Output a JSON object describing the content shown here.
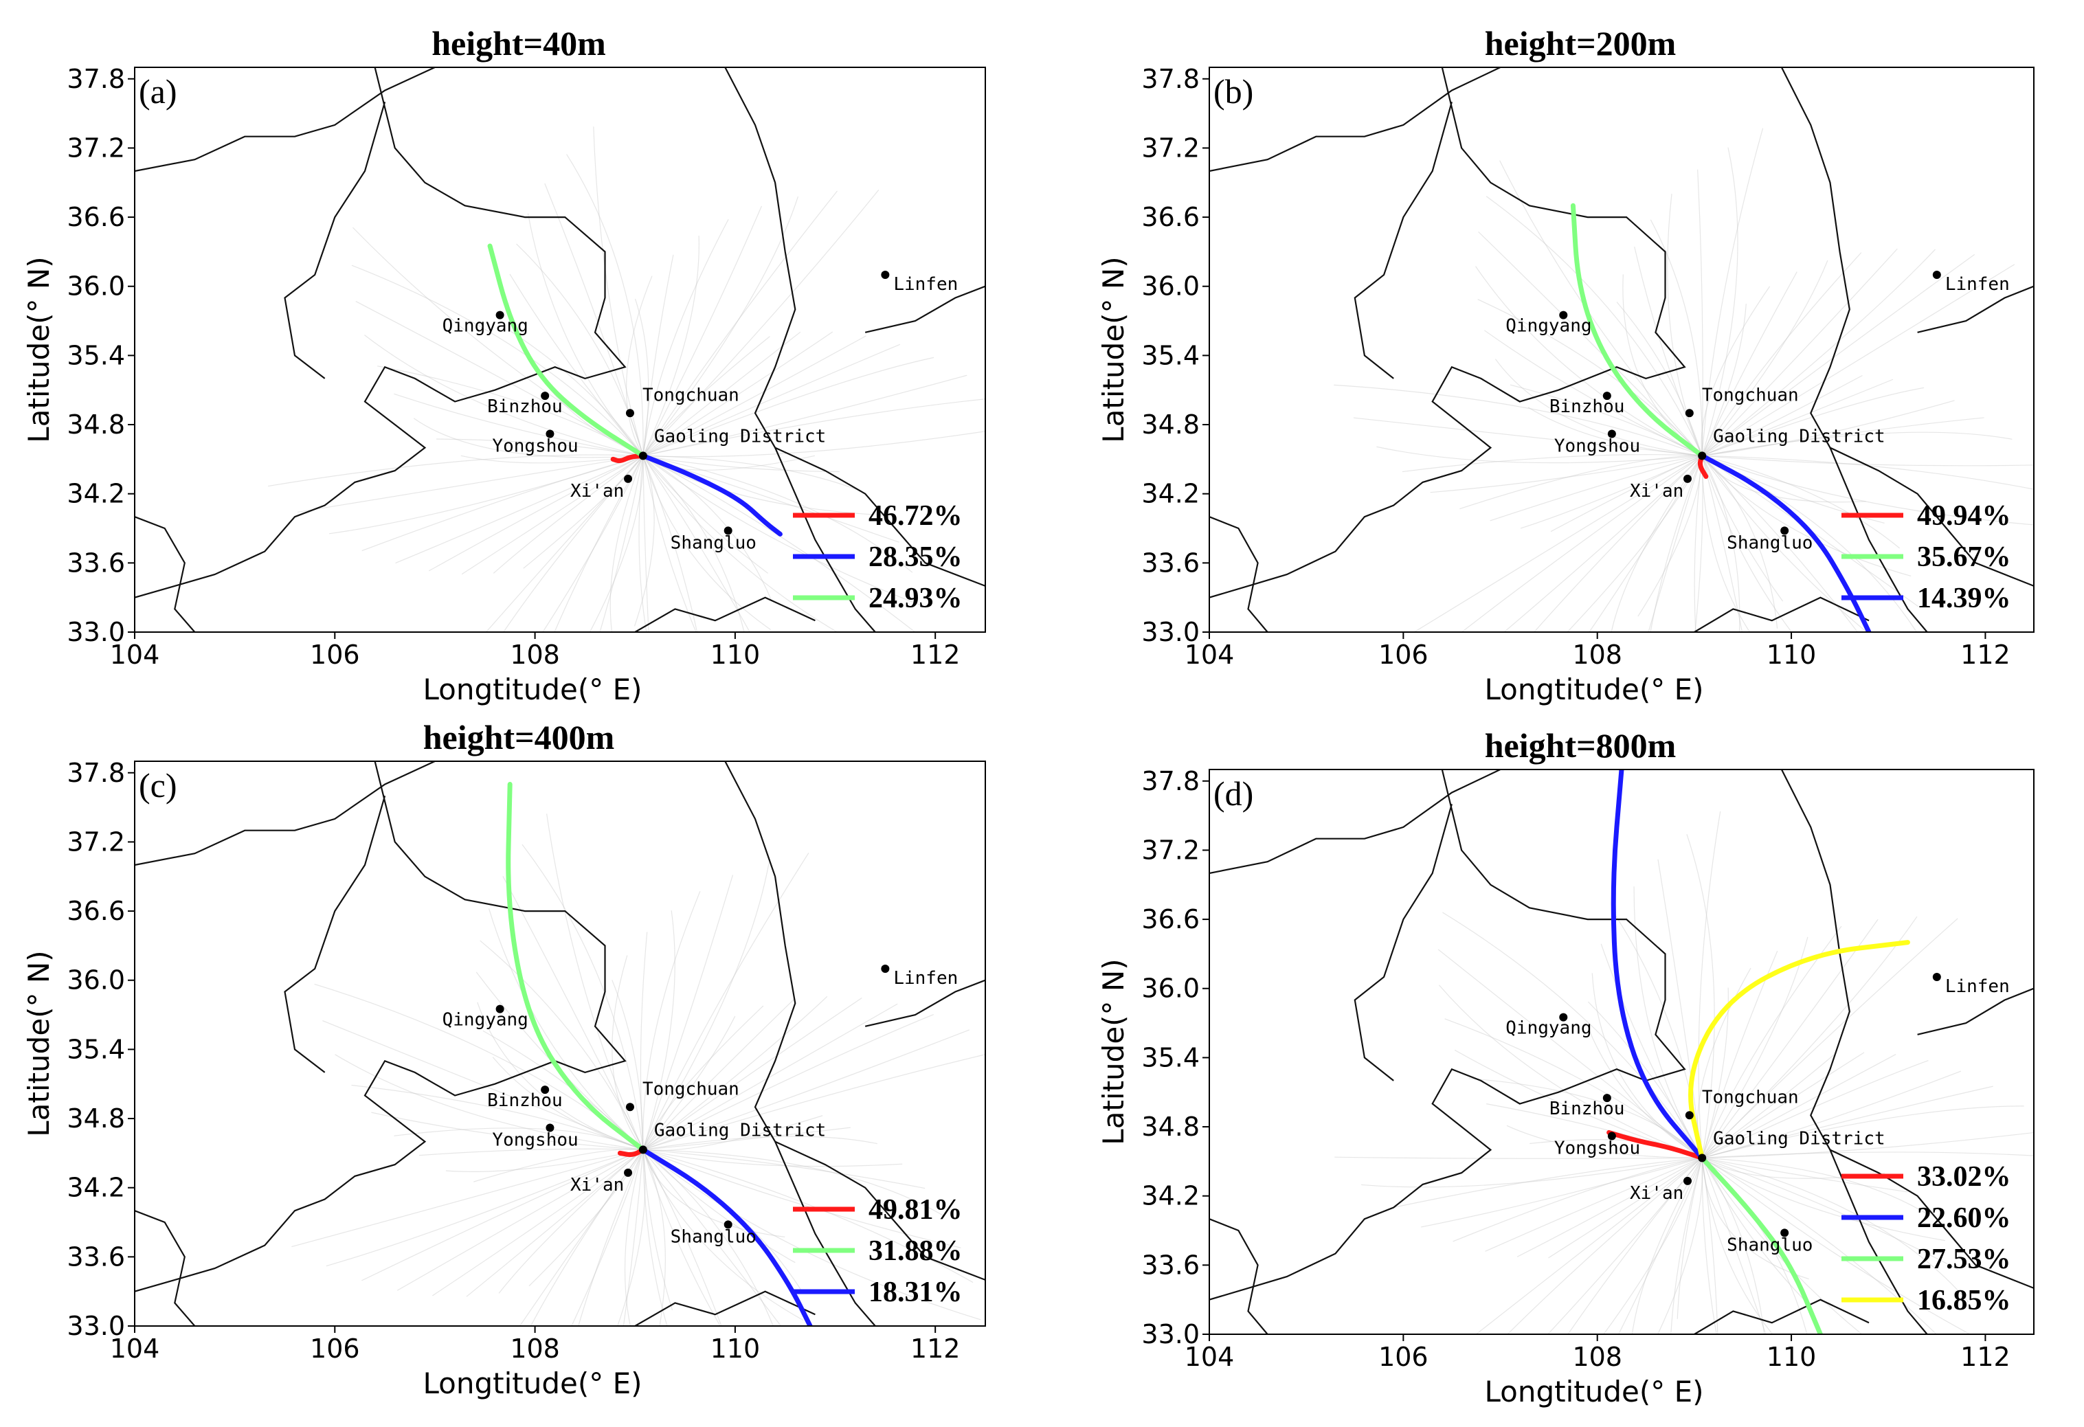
{
  "figure": {
    "x_axis_label": "Longtitude(° E)",
    "y_axis_label": "Latitude(° N)"
  },
  "colors": {
    "red": "#ff1a1a",
    "blue": "#1a1aff",
    "green": "#80ff80",
    "yellow": "#ffff1a",
    "city_dot": "#000000"
  },
  "chart_data": [
    {
      "type": "line",
      "panel_label": "(a)",
      "title": "height=40m",
      "xlabel": "Longtitude(° E)",
      "ylabel": "Latitude(° N)",
      "xlim": [
        104,
        112.5
      ],
      "ylim": [
        33.0,
        37.9
      ],
      "x_ticks": [
        "104",
        "106",
        "108",
        "110",
        "112"
      ],
      "y_ticks": [
        "33.0",
        "33.6",
        "34.2",
        "34.8",
        "35.4",
        "36.0",
        "36.6",
        "37.2",
        "37.8"
      ],
      "cities": [
        {
          "name": "Linfen",
          "lon": 111.5,
          "lat": 36.1
        },
        {
          "name": "Qingyang",
          "lon": 107.65,
          "lat": 35.75
        },
        {
          "name": "Tongchuan",
          "lon": 108.95,
          "lat": 34.9
        },
        {
          "name": "Binzhou",
          "lon": 108.1,
          "lat": 35.05
        },
        {
          "name": "Gaoling District",
          "lon": 109.08,
          "lat": 34.53
        },
        {
          "name": "Yongshou",
          "lon": 108.15,
          "lat": 34.72
        },
        {
          "name": "Xi'an",
          "lon": 108.93,
          "lat": 34.33
        },
        {
          "name": "Shangluo",
          "lon": 109.93,
          "lat": 33.88
        }
      ],
      "series": [
        {
          "name": "46.72%",
          "color": "red",
          "points": [
            [
              109.08,
              34.53
            ],
            [
              108.95,
              34.52
            ],
            [
              108.85,
              34.48
            ],
            [
              108.78,
              34.5
            ]
          ]
        },
        {
          "name": "28.35%",
          "color": "blue",
          "points": [
            [
              109.08,
              34.53
            ],
            [
              109.6,
              34.35
            ],
            [
              110.05,
              34.15
            ],
            [
              110.3,
              33.95
            ],
            [
              110.45,
              33.85
            ]
          ]
        },
        {
          "name": "24.93%",
          "color": "green",
          "points": [
            [
              109.08,
              34.53
            ],
            [
              108.5,
              34.85
            ],
            [
              108.05,
              35.2
            ],
            [
              107.75,
              35.7
            ],
            [
              107.55,
              36.35
            ]
          ]
        }
      ]
    },
    {
      "type": "line",
      "panel_label": "(b)",
      "title": "height=200m",
      "xlabel": "Longtitude(° E)",
      "ylabel": "Latitude(° N)",
      "xlim": [
        104,
        112.5
      ],
      "ylim": [
        33.0,
        37.9
      ],
      "x_ticks": [
        "104",
        "106",
        "108",
        "110",
        "112"
      ],
      "y_ticks": [
        "33.0",
        "33.6",
        "34.2",
        "34.8",
        "35.4",
        "36.0",
        "36.6",
        "37.2",
        "37.8"
      ],
      "cities": [
        {
          "name": "Linfen",
          "lon": 111.5,
          "lat": 36.1
        },
        {
          "name": "Qingyang",
          "lon": 107.65,
          "lat": 35.75
        },
        {
          "name": "Tongchuan",
          "lon": 108.95,
          "lat": 34.9
        },
        {
          "name": "Binzhou",
          "lon": 108.1,
          "lat": 35.05
        },
        {
          "name": "Gaoling District",
          "lon": 109.08,
          "lat": 34.53
        },
        {
          "name": "Yongshou",
          "lon": 108.15,
          "lat": 34.72
        },
        {
          "name": "Xi'an",
          "lon": 108.93,
          "lat": 34.33
        },
        {
          "name": "Shangluo",
          "lon": 109.93,
          "lat": 33.88
        }
      ],
      "series": [
        {
          "name": "49.94%",
          "color": "red",
          "points": [
            [
              109.08,
              34.53
            ],
            [
              109.05,
              34.45
            ],
            [
              109.12,
              34.35
            ]
          ]
        },
        {
          "name": "35.67%",
          "color": "green",
          "points": [
            [
              109.08,
              34.53
            ],
            [
              108.5,
              34.9
            ],
            [
              108.05,
              35.4
            ],
            [
              107.8,
              36.0
            ],
            [
              107.75,
              36.7
            ]
          ]
        },
        {
          "name": "14.39%",
          "color": "blue",
          "points": [
            [
              109.08,
              34.53
            ],
            [
              109.7,
              34.25
            ],
            [
              110.25,
              33.85
            ],
            [
              110.6,
              33.35
            ],
            [
              110.8,
              33.0
            ]
          ]
        }
      ]
    },
    {
      "type": "line",
      "panel_label": "(c)",
      "title": "height=400m",
      "xlabel": "Longtitude(° E)",
      "ylabel": "Latitude(° N)",
      "xlim": [
        104,
        112.5
      ],
      "ylim": [
        33.0,
        37.9
      ],
      "x_ticks": [
        "104",
        "106",
        "108",
        "110",
        "112"
      ],
      "y_ticks": [
        "33.0",
        "33.6",
        "34.2",
        "34.8",
        "35.4",
        "36.0",
        "36.6",
        "37.2",
        "37.8"
      ],
      "cities": [
        {
          "name": "Linfen",
          "lon": 111.5,
          "lat": 36.1
        },
        {
          "name": "Qingyang",
          "lon": 107.65,
          "lat": 35.75
        },
        {
          "name": "Tongchuan",
          "lon": 108.95,
          "lat": 34.9
        },
        {
          "name": "Binzhou",
          "lon": 108.1,
          "lat": 35.05
        },
        {
          "name": "Gaoling District",
          "lon": 109.08,
          "lat": 34.53
        },
        {
          "name": "Yongshou",
          "lon": 108.15,
          "lat": 34.72
        },
        {
          "name": "Xi'an",
          "lon": 108.93,
          "lat": 34.33
        },
        {
          "name": "Shangluo",
          "lon": 109.93,
          "lat": 33.88
        }
      ],
      "series": [
        {
          "name": "49.81%",
          "color": "red",
          "points": [
            [
              109.08,
              34.53
            ],
            [
              108.98,
              34.48
            ],
            [
              108.85,
              34.5
            ]
          ]
        },
        {
          "name": "31.88%",
          "color": "green",
          "points": [
            [
              109.08,
              34.53
            ],
            [
              108.45,
              34.95
            ],
            [
              107.95,
              35.6
            ],
            [
              107.72,
              36.6
            ],
            [
              107.75,
              37.7
            ]
          ]
        },
        {
          "name": "18.31%",
          "color": "blue",
          "points": [
            [
              109.08,
              34.53
            ],
            [
              109.7,
              34.2
            ],
            [
              110.2,
              33.8
            ],
            [
              110.55,
              33.35
            ],
            [
              110.75,
              33.0
            ]
          ]
        }
      ]
    },
    {
      "type": "line",
      "panel_label": "(d)",
      "title": "height=800m",
      "xlabel": "Longtitude(° E)",
      "ylabel": "Latitude(° N)",
      "xlim": [
        104,
        112.5
      ],
      "ylim": [
        33.0,
        37.9
      ],
      "x_ticks": [
        "104",
        "106",
        "108",
        "110",
        "112"
      ],
      "y_ticks": [
        "33.0",
        "33.6",
        "34.2",
        "34.8",
        "35.4",
        "36.0",
        "36.6",
        "37.2",
        "37.8"
      ],
      "cities": [
        {
          "name": "Linfen",
          "lon": 111.5,
          "lat": 36.1
        },
        {
          "name": "Qingyang",
          "lon": 107.65,
          "lat": 35.75
        },
        {
          "name": "Tongchuan",
          "lon": 108.95,
          "lat": 34.9
        },
        {
          "name": "Binzhou",
          "lon": 108.1,
          "lat": 35.05
        },
        {
          "name": "Gaoling District",
          "lon": 109.08,
          "lat": 34.53
        },
        {
          "name": "Yongshou",
          "lon": 108.15,
          "lat": 34.72
        },
        {
          "name": "Xi'an",
          "lon": 108.93,
          "lat": 34.33
        },
        {
          "name": "Shangluo",
          "lon": 109.93,
          "lat": 33.88
        }
      ],
      "series": [
        {
          "name": "33.02%",
          "color": "red",
          "points": [
            [
              109.08,
              34.53
            ],
            [
              108.75,
              34.62
            ],
            [
              108.4,
              34.68
            ],
            [
              108.12,
              34.75
            ]
          ]
        },
        {
          "name": "22.60%",
          "color": "blue",
          "points": [
            [
              109.08,
              34.53
            ],
            [
              108.5,
              35.1
            ],
            [
              108.2,
              35.9
            ],
            [
              108.15,
              36.9
            ],
            [
              108.25,
              37.9
            ]
          ]
        },
        {
          "name": "27.53%",
          "color": "green",
          "points": [
            [
              109.08,
              34.53
            ],
            [
              109.6,
              34.05
            ],
            [
              110.0,
              33.6
            ],
            [
              110.3,
              33.0
            ]
          ]
        },
        {
          "name": "16.85%",
          "color": "yellow",
          "points": [
            [
              109.08,
              34.53
            ],
            [
              108.9,
              35.2
            ],
            [
              109.3,
              35.9
            ],
            [
              110.2,
              36.3
            ],
            [
              111.2,
              36.4
            ]
          ]
        }
      ]
    }
  ]
}
